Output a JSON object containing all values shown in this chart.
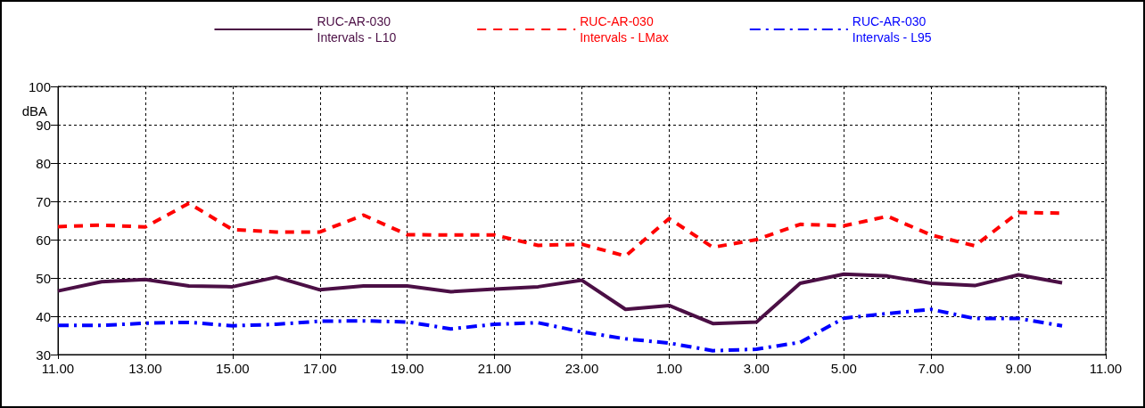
{
  "chart_data": {
    "type": "line",
    "ylabel": "dBA",
    "categories": [
      "11.00",
      null,
      "13.00",
      null,
      "15.00",
      null,
      "17.00",
      null,
      "19.00",
      null,
      "21.00",
      null,
      "23.00",
      null,
      "1.00",
      null,
      "3.00",
      null,
      "5.00",
      null,
      "7.00",
      null,
      "9.00",
      null,
      "11.00"
    ],
    "ylim": [
      30,
      100
    ],
    "yticks": [
      30,
      40,
      50,
      60,
      70,
      80,
      90,
      100
    ],
    "grid": true,
    "legend": "top",
    "marker": "none",
    "series": [
      {
        "name": "RUC-AR-030 Intervals - L10",
        "color": "#4b0f45",
        "line_style": "solid",
        "values": [
          46.6,
          49.0,
          49.6,
          47.9,
          47.7,
          50.2,
          46.9,
          47.9,
          47.9,
          46.4,
          47.1,
          47.7,
          49.4,
          41.8,
          42.8,
          38.1,
          38.5,
          48.6,
          51.0,
          50.5,
          48.6,
          48.0,
          50.8,
          48.7,
          null
        ]
      },
      {
        "name": "RUC-AR-030 Intervals - LMax",
        "color": "#ff0000",
        "line_style": "dashed",
        "values": [
          63.4,
          63.8,
          63.3,
          69.5,
          62.6,
          62.0,
          62.0,
          66.4,
          61.3,
          61.2,
          61.2,
          58.5,
          58.8,
          55.7,
          65.5,
          58.0,
          60.0,
          64.0,
          63.6,
          66.1,
          61.2,
          58.4,
          67.1,
          66.9,
          null
        ]
      },
      {
        "name": "RUC-AR-030 Intervals - L95",
        "color": "#0000ff",
        "line_style": "dashdot",
        "values": [
          37.6,
          37.6,
          38.2,
          38.4,
          37.5,
          37.9,
          38.7,
          38.8,
          38.5,
          36.7,
          37.9,
          38.3,
          35.9,
          34.1,
          33.0,
          31.0,
          31.4,
          33.2,
          39.5,
          40.7,
          41.8,
          39.4,
          39.4,
          37.5,
          null
        ]
      }
    ]
  }
}
